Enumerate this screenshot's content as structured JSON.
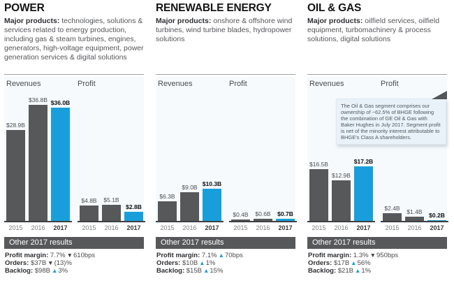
{
  "colors": {
    "bar_gray": "#57585a",
    "bar_blue": "#189fdb",
    "up_arrow": "#189fdb",
    "down_arrow": "#3f4042",
    "results_bar_bg": "#57585a",
    "note_bg": "#eaf2f9"
  },
  "chart_labels": {
    "revenues": "Revenues",
    "profit": "Profit"
  },
  "segments": [
    {
      "title": "POWER",
      "major_products_label": "Major products:",
      "description": "technologies, solutions & services related to energy production, including gas & steam turbines, engines, generators, high-voltage equipment, power generation services & digital solutions",
      "revenues": {
        "years": [
          "2015",
          "2016",
          "2017"
        ],
        "values": [
          28.9,
          36.8,
          36.0
        ],
        "labels": [
          "$28.9B",
          "$36.8B",
          "$36.0B"
        ]
      },
      "profit": {
        "years": [
          "2015",
          "2016",
          "2017"
        ],
        "values": [
          4.8,
          5.1,
          2.8
        ],
        "labels": [
          "$4.8B",
          "$5.1B",
          "$2.8B"
        ]
      },
      "other_results": {
        "header": "Other 2017 results",
        "rows": [
          {
            "label": "Profit margin:",
            "value": "7.7%",
            "direction": "down",
            "change": "610bps"
          },
          {
            "label": "Orders:",
            "value": "$37B",
            "direction": "down",
            "change": "(13)%"
          },
          {
            "label": "Backlog:",
            "value": "$98B",
            "direction": "up",
            "change": "3%"
          }
        ]
      }
    },
    {
      "title": "RENEWABLE ENERGY",
      "major_products_label": "Major products:",
      "description": "onshore & offshore wind turbines, wind turbine blades, hydropower solutions",
      "revenues": {
        "years": [
          "2015",
          "2016",
          "2017"
        ],
        "values": [
          6.3,
          9.0,
          10.3
        ],
        "labels": [
          "$6.3B",
          "$9.0B",
          "$10.3B"
        ]
      },
      "profit": {
        "years": [
          "2015",
          "2016",
          "2017"
        ],
        "values": [
          0.4,
          0.6,
          0.7
        ],
        "labels": [
          "$0.4B",
          "$0.6B",
          "$0.7B"
        ]
      },
      "other_results": {
        "header": "Other 2017 results",
        "rows": [
          {
            "label": "Profit margin:",
            "value": "7.1%",
            "direction": "up",
            "change": "70bps"
          },
          {
            "label": "Orders:",
            "value": "$10B",
            "direction": "up",
            "change": "1%"
          },
          {
            "label": "Backlog:",
            "value": "$15B",
            "direction": "up",
            "change": "15%"
          }
        ]
      }
    },
    {
      "title": "OIL & GAS",
      "major_products_label": "Major products:",
      "description": "oilfield services, oilfield equipment, turbomachinery & process solutions, digital solutions",
      "revenues": {
        "years": [
          "2015",
          "2016",
          "2017"
        ],
        "values": [
          16.5,
          12.9,
          17.2
        ],
        "labels": [
          "$16.5B",
          "$12.9B",
          "$17.2B"
        ]
      },
      "profit": {
        "years": [
          "2015",
          "2016",
          "2017"
        ],
        "values": [
          2.4,
          1.4,
          0.2
        ],
        "labels": [
          "$2.4B",
          "$1.4B",
          "$0.2B"
        ]
      },
      "other_results": {
        "header": "Other 2017 results",
        "rows": [
          {
            "label": "Profit margin:",
            "value": "1.3%",
            "direction": "down",
            "change": "950bps"
          },
          {
            "label": "Orders:",
            "value": "$17B",
            "direction": "up",
            "change": "56%"
          },
          {
            "label": "Backlog:",
            "value": "$21B",
            "direction": "up",
            "change": "1%"
          }
        ]
      }
    }
  ],
  "note": {
    "text": "The Oil & Gas segment comprises our ownership of ~62.5% of BHGE following the combination of GE Oil & Gas with Baker Hughes in July 2017. Segment profit is net of the minority interest attributable to BHGE's Class A shareholders."
  },
  "chart_data": [
    {
      "type": "bar",
      "title": "POWER",
      "categories": [
        "2015",
        "2016",
        "2017"
      ],
      "series": [
        {
          "name": "Revenues",
          "values": [
            28.9,
            36.8,
            36.0
          ],
          "labels": [
            "$28.9B",
            "$36.8B",
            "$36.0B"
          ]
        },
        {
          "name": "Profit",
          "values": [
            4.8,
            5.1,
            2.8
          ],
          "labels": [
            "$4.8B",
            "$5.1B",
            "$2.8B"
          ]
        }
      ],
      "unit": "$B",
      "highlight_category": "2017",
      "ylim": [
        0,
        36.8
      ],
      "grid": false,
      "legend": false
    },
    {
      "type": "bar",
      "title": "RENEWABLE ENERGY",
      "categories": [
        "2015",
        "2016",
        "2017"
      ],
      "series": [
        {
          "name": "Revenues",
          "values": [
            6.3,
            9.0,
            10.3
          ],
          "labels": [
            "$6.3B",
            "$9.0B",
            "$10.3B"
          ]
        },
        {
          "name": "Profit",
          "values": [
            0.4,
            0.6,
            0.7
          ],
          "labels": [
            "$0.4B",
            "$0.6B",
            "$0.7B"
          ]
        }
      ],
      "unit": "$B",
      "highlight_category": "2017",
      "ylim": [
        0,
        36.8
      ],
      "grid": false,
      "legend": false
    },
    {
      "type": "bar",
      "title": "OIL & GAS",
      "categories": [
        "2015",
        "2016",
        "2017"
      ],
      "series": [
        {
          "name": "Revenues",
          "values": [
            16.5,
            12.9,
            17.2
          ],
          "labels": [
            "$16.5B",
            "$12.9B",
            "$17.2B"
          ]
        },
        {
          "name": "Profit",
          "values": [
            2.4,
            1.4,
            0.2
          ],
          "labels": [
            "$2.4B",
            "$1.4B",
            "$0.2B"
          ]
        }
      ],
      "unit": "$B",
      "highlight_category": "2017",
      "ylim": [
        0,
        36.8
      ],
      "grid": false,
      "legend": false
    }
  ]
}
